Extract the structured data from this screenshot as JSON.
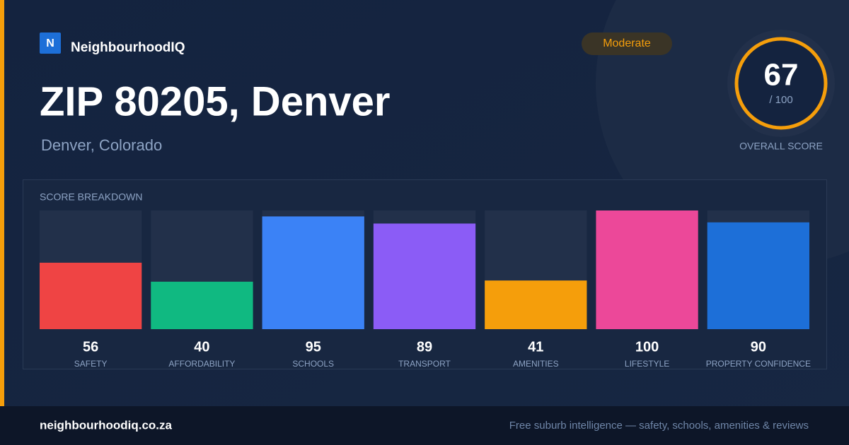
{
  "brand": {
    "logo": "N",
    "name": "NeighbourhoodIQ"
  },
  "badge": "Moderate",
  "header": {
    "title": "ZIP 80205, Denver",
    "subtitle": "Denver, Colorado"
  },
  "score": {
    "value": 67,
    "out_of": "/ 100",
    "label": "OVERALL SCORE"
  },
  "chart_data": {
    "type": "bar",
    "title": "SCORE BREAKDOWN",
    "categories": [
      "SAFETY",
      "AFFORDABILITY",
      "SCHOOLS",
      "TRANSPORT",
      "AMENITIES",
      "LIFESTYLE",
      "PROPERTY CONFIDENCE"
    ],
    "values": [
      56,
      40,
      95,
      89,
      41,
      100,
      90
    ],
    "colors": [
      "#ef4444",
      "#10b981",
      "#3b82f6",
      "#8b5cf6",
      "#f59e0b",
      "#ec4899",
      "#1d6fd8"
    ],
    "ylim": [
      0,
      100
    ]
  },
  "footer": {
    "site": "neighbourhoodiq.co.za",
    "tagline": "Free suburb intelligence — safety, schools, amenities & reviews"
  }
}
